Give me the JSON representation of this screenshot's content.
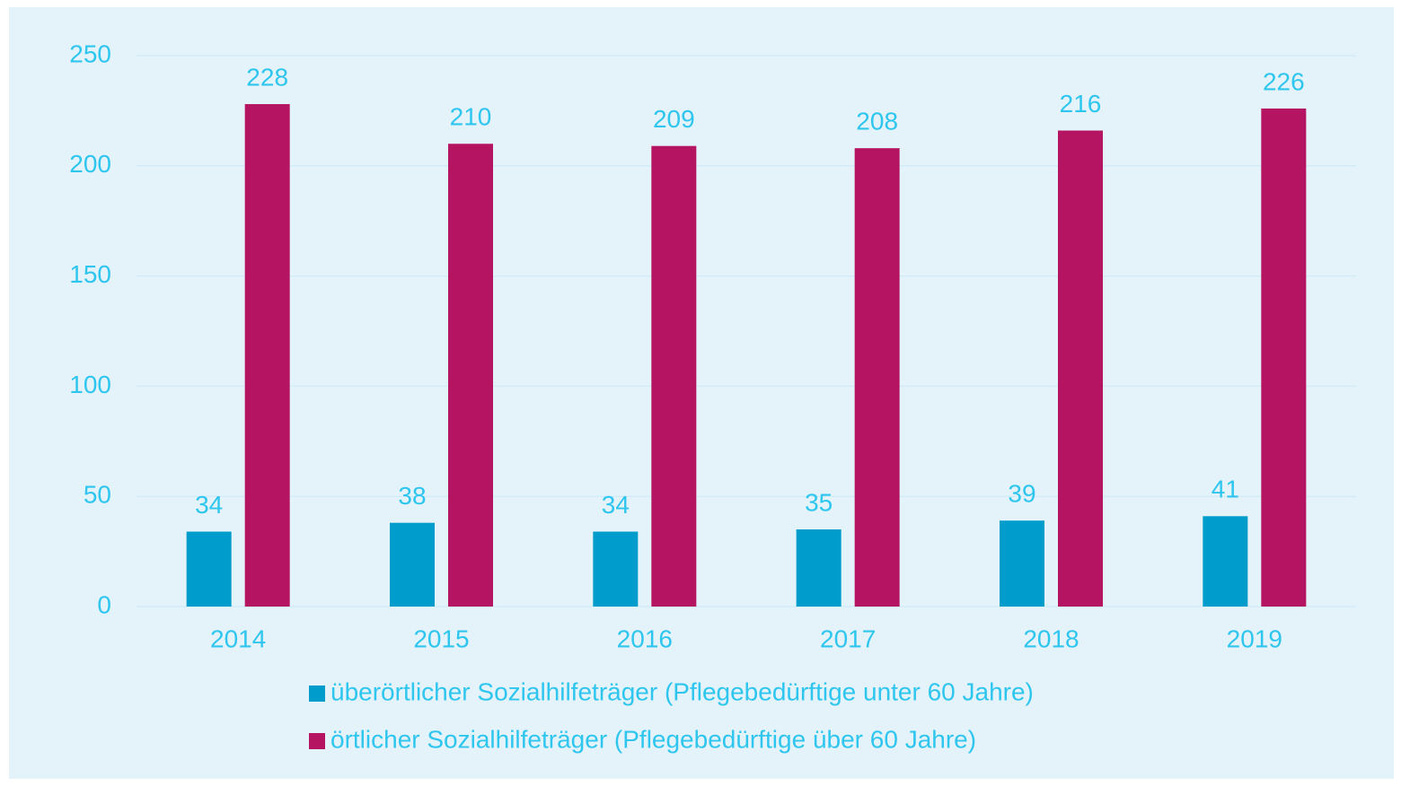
{
  "chart_data": {
    "type": "bar",
    "categories": [
      "2014",
      "2015",
      "2016",
      "2017",
      "2018",
      "2019"
    ],
    "series": [
      {
        "name": "überörtlicher Sozialhilfeträger (Pflegebedürftige unter 60 Jahre)",
        "color": "#009ccc",
        "values": [
          34,
          38,
          34,
          35,
          39,
          41
        ]
      },
      {
        "name": "örtlicher Sozialhilfeträger (Pflegebedürftige über 60 Jahre)",
        "color": "#b51462",
        "values": [
          228,
          210,
          209,
          208,
          216,
          226
        ]
      }
    ],
    "ylim": [
      0,
      250
    ],
    "yticks": [
      0,
      50,
      100,
      150,
      200,
      250
    ],
    "grid": true,
    "legend": "bottom"
  }
}
